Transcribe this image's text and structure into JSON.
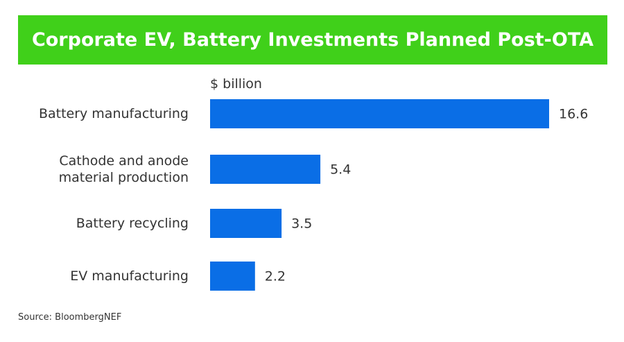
{
  "chart_data": {
    "type": "bar",
    "orientation": "horizontal",
    "title": "Corporate EV, Battery Investments Planned Post-OTA",
    "unit_label": "$ billion",
    "categories": [
      "Battery manufacturing",
      "Cathode and anode material production",
      "Battery recycling",
      "EV manufacturing"
    ],
    "values": [
      16.6,
      5.4,
      3.5,
      2.2
    ],
    "color": "#0a6ee6",
    "xlim": [
      0,
      16.6
    ],
    "source": "Source: BloombergNEF"
  }
}
